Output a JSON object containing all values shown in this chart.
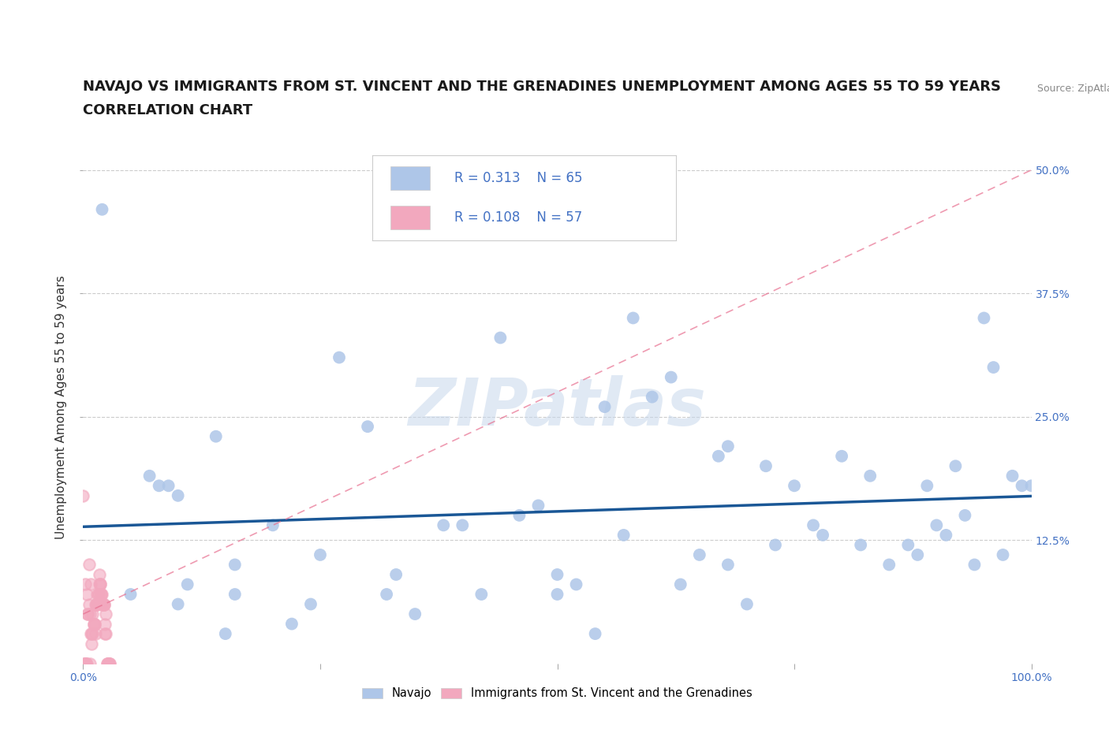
{
  "title_line1": "NAVAJO VS IMMIGRANTS FROM ST. VINCENT AND THE GRENADINES UNEMPLOYMENT AMONG AGES 55 TO 59 YEARS",
  "title_line2": "CORRELATION CHART",
  "source_text": "Source: ZipAtlas.com",
  "ylabel": "Unemployment Among Ages 55 to 59 years",
  "xlim": [
    0,
    1.0
  ],
  "ylim": [
    0,
    0.52
  ],
  "ytick_positions": [
    0.125,
    0.25,
    0.375,
    0.5
  ],
  "ytick_labels": [
    "12.5%",
    "25.0%",
    "37.5%",
    "50.0%"
  ],
  "navajo_R": 0.313,
  "navajo_N": 65,
  "svg_R": 0.108,
  "svg_N": 57,
  "navajo_color": "#aec6e8",
  "svg_color": "#f2a8be",
  "navajo_line_color": "#1a5796",
  "svg_line_color": "#e87090",
  "watermark": "ZIPatlas",
  "watermark_color": "#c8d8ec",
  "background_color": "#ffffff",
  "title_fontsize": 13,
  "axis_label_fontsize": 11,
  "tick_fontsize": 10,
  "navajo_x": [
    0.02,
    0.07,
    0.08,
    0.09,
    0.1,
    0.1,
    0.11,
    0.14,
    0.15,
    0.16,
    0.16,
    0.2,
    0.22,
    0.24,
    0.25,
    0.27,
    0.3,
    0.33,
    0.35,
    0.38,
    0.4,
    0.42,
    0.44,
    0.46,
    0.48,
    0.5,
    0.52,
    0.54,
    0.55,
    0.57,
    0.58,
    0.6,
    0.62,
    0.63,
    0.65,
    0.67,
    0.68,
    0.7,
    0.72,
    0.73,
    0.75,
    0.77,
    0.78,
    0.8,
    0.82,
    0.83,
    0.85,
    0.87,
    0.88,
    0.89,
    0.9,
    0.91,
    0.92,
    0.93,
    0.94,
    0.95,
    0.96,
    0.97,
    0.98,
    0.99,
    1.0,
    0.05,
    0.32,
    0.5,
    0.68
  ],
  "navajo_y": [
    0.46,
    0.19,
    0.18,
    0.18,
    0.17,
    0.06,
    0.08,
    0.23,
    0.03,
    0.07,
    0.1,
    0.14,
    0.04,
    0.06,
    0.11,
    0.31,
    0.24,
    0.09,
    0.05,
    0.14,
    0.14,
    0.07,
    0.33,
    0.15,
    0.16,
    0.09,
    0.08,
    0.03,
    0.26,
    0.13,
    0.35,
    0.27,
    0.29,
    0.08,
    0.11,
    0.21,
    0.1,
    0.06,
    0.2,
    0.12,
    0.18,
    0.14,
    0.13,
    0.21,
    0.12,
    0.19,
    0.1,
    0.12,
    0.11,
    0.18,
    0.14,
    0.13,
    0.2,
    0.15,
    0.1,
    0.35,
    0.3,
    0.11,
    0.19,
    0.18,
    0.18,
    0.07,
    0.07,
    0.07,
    0.22
  ],
  "svg_x": [
    0.0,
    0.001,
    0.001,
    0.002,
    0.002,
    0.003,
    0.003,
    0.004,
    0.004,
    0.005,
    0.005,
    0.006,
    0.006,
    0.007,
    0.007,
    0.008,
    0.008,
    0.009,
    0.009,
    0.01,
    0.01,
    0.011,
    0.011,
    0.012,
    0.012,
    0.013,
    0.013,
    0.014,
    0.014,
    0.015,
    0.015,
    0.016,
    0.016,
    0.017,
    0.017,
    0.018,
    0.018,
    0.019,
    0.019,
    0.02,
    0.02,
    0.021,
    0.021,
    0.022,
    0.022,
    0.023,
    0.023,
    0.024,
    0.024,
    0.025,
    0.025,
    0.026,
    0.026,
    0.027,
    0.027,
    0.028,
    0.028
  ],
  "svg_y": [
    0.17,
    0.0,
    0.0,
    0.0,
    0.08,
    0.0,
    0.0,
    0.0,
    0.07,
    0.05,
    0.05,
    0.06,
    0.1,
    0.0,
    0.05,
    0.08,
    0.03,
    0.03,
    0.02,
    0.05,
    0.03,
    0.04,
    0.04,
    0.04,
    0.04,
    0.03,
    0.06,
    0.06,
    0.06,
    0.06,
    0.07,
    0.07,
    0.07,
    0.08,
    0.09,
    0.08,
    0.08,
    0.07,
    0.07,
    0.07,
    0.06,
    0.06,
    0.06,
    0.06,
    0.06,
    0.04,
    0.03,
    0.03,
    0.05,
    0.0,
    0.0,
    0.0,
    0.0,
    0.0,
    0.0,
    0.0,
    0.0
  ],
  "svg_line_x": [
    0.0,
    1.0
  ],
  "svg_line_y": [
    0.05,
    0.5
  ]
}
